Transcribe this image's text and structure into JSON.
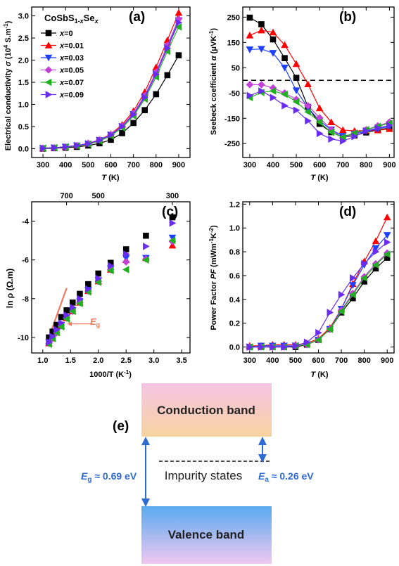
{
  "chart_data": [
    {
      "panel": "(a)",
      "type": "line",
      "title": "CoSbS1-xSex",
      "xlabel": "T (K)",
      "ylabel": "Electrical conductivity σ (10⁴ S.m⁻¹)",
      "xlim": [
        250,
        950
      ],
      "ylim": [
        -0.2,
        3.2
      ],
      "xticks": [
        300,
        400,
        500,
        600,
        700,
        800,
        900
      ],
      "yticks": [
        0.0,
        0.5,
        1.0,
        1.5,
        2.0,
        2.5,
        3.0
      ],
      "ytick_labels": [
        "0.0",
        "0.5",
        "1.0",
        "1.5",
        "2.0",
        "2.5",
        "3.0"
      ],
      "legend_position": "upper-left",
      "x": [
        300,
        350,
        400,
        450,
        500,
        550,
        600,
        650,
        700,
        750,
        800,
        850,
        900
      ],
      "series": [
        {
          "name": "x=0",
          "values": [
            0.0,
            0.01,
            0.02,
            0.04,
            0.07,
            0.12,
            0.2,
            0.35,
            0.58,
            0.87,
            1.23,
            1.66,
            2.11
          ]
        },
        {
          "name": "x=0.01",
          "values": [
            0.01,
            0.02,
            0.04,
            0.07,
            0.12,
            0.2,
            0.33,
            0.54,
            0.85,
            1.28,
            1.84,
            2.45,
            3.07
          ]
        },
        {
          "name": "x=0.03",
          "values": [
            0.01,
            0.02,
            0.04,
            0.07,
            0.11,
            0.19,
            0.31,
            0.5,
            0.78,
            1.18,
            1.7,
            2.3,
            2.9
          ]
        },
        {
          "name": "x=0.05",
          "values": [
            0.01,
            0.02,
            0.04,
            0.07,
            0.12,
            0.2,
            0.32,
            0.51,
            0.8,
            1.2,
            1.73,
            2.33,
            2.93
          ]
        },
        {
          "name": "x=0.07",
          "values": [
            0.01,
            0.02,
            0.04,
            0.06,
            0.1,
            0.17,
            0.29,
            0.47,
            0.74,
            1.12,
            1.62,
            2.2,
            2.75
          ]
        },
        {
          "name": "x=0.09",
          "values": [
            0.01,
            0.02,
            0.04,
            0.07,
            0.11,
            0.19,
            0.31,
            0.5,
            0.77,
            1.16,
            1.68,
            2.27,
            2.85
          ]
        }
      ]
    },
    {
      "panel": "(b)",
      "type": "line",
      "xlabel": "T (K)",
      "ylabel": "Seebeck coefficient α (μVK⁻¹)",
      "xlim": [
        270,
        920
      ],
      "ylim": [
        -305,
        290
      ],
      "xticks": [
        300,
        400,
        500,
        600,
        700,
        800,
        900
      ],
      "yticks": [
        250,
        150,
        50,
        -50,
        -150,
        -250
      ],
      "ytick_labels": [
        "250",
        "150",
        "50",
        "-50",
        "-150",
        "-250"
      ],
      "reference_line": {
        "y": 0,
        "style": "dashed"
      },
      "x": [
        300,
        350,
        400,
        450,
        500,
        550,
        600,
        650,
        700,
        750,
        800,
        850,
        900
      ],
      "series": [
        {
          "name": "x=0",
          "values": [
            248,
            222,
            162,
            88,
            10,
            -105,
            -172,
            -205,
            -225,
            -218,
            -206,
            -196,
            -188
          ]
        },
        {
          "name": "x=0.01",
          "values": [
            178,
            198,
            190,
            140,
            65,
            -15,
            -110,
            -165,
            -196,
            -200,
            -198,
            -197,
            -192
          ]
        },
        {
          "name": "x=0.03",
          "values": [
            122,
            124,
            108,
            50,
            -40,
            -108,
            -160,
            -195,
            -220,
            -212,
            -200,
            -192,
            -182
          ]
        },
        {
          "name": "x=0.05",
          "values": [
            -17,
            -17,
            -30,
            -50,
            -75,
            -100,
            -148,
            -195,
            -228,
            -210,
            -195,
            -180,
            -165
          ]
        },
        {
          "name": "x=0.07",
          "values": [
            -68,
            -48,
            -42,
            -55,
            -85,
            -125,
            -165,
            -205,
            -225,
            -208,
            -195,
            -182,
            -170
          ]
        },
        {
          "name": "x=0.09",
          "values": [
            -60,
            -42,
            -68,
            -100,
            -118,
            -160,
            -210,
            -232,
            -240,
            -222,
            -200,
            -188,
            -178
          ]
        }
      ]
    },
    {
      "panel": "(c)",
      "type": "scatter",
      "xlabel": "1000/T (K⁻¹)",
      "ylabel": "ln ρ (Ω.m)",
      "top_axis_label": "",
      "top_ticks": [
        {
          "label": "700",
          "x": 1.4286
        },
        {
          "label": "500",
          "x": 2.0
        },
        {
          "label": "300",
          "x": 3.333
        }
      ],
      "xlim": [
        0.8,
        3.65
      ],
      "ylim": [
        -10.8,
        -3.0
      ],
      "xticks": [
        1.0,
        1.5,
        2.0,
        2.5,
        3.0,
        3.5
      ],
      "xtick_labels": [
        "1.0",
        "1.5",
        "2.0",
        "2.5",
        "3.0",
        "3.5"
      ],
      "yticks": [
        -4,
        -6,
        -8,
        -10
      ],
      "ytick_labels": [
        "-4",
        "-6",
        "-8",
        "-10"
      ],
      "annotation": "Eg",
      "fit_line": {
        "x": [
          1.06,
          1.43
        ],
        "y": [
          -10.4,
          -7.45
        ]
      },
      "x": [
        1.111,
        1.176,
        1.25,
        1.333,
        1.429,
        1.538,
        1.667,
        1.818,
        2.0,
        2.222,
        2.5,
        2.857,
        3.333
      ],
      "series": [
        {
          "name": "x=0",
          "values": [
            -10.0,
            -9.7,
            -9.35,
            -8.95,
            -8.6,
            -8.2,
            -7.75,
            -7.25,
            -6.7,
            -6.15,
            -5.45,
            -4.75,
            -3.8
          ]
        },
        {
          "name": "x=0.01",
          "values": [
            -10.3,
            -10.05,
            -9.75,
            -9.4,
            -9.0,
            -8.65,
            -8.2,
            -7.6,
            -7.1,
            -6.5,
            -6.0,
            -5.9,
            -5.25
          ]
        },
        {
          "name": "x=0.03",
          "values": [
            -10.25,
            -10.0,
            -9.7,
            -9.35,
            -8.95,
            -8.6,
            -8.15,
            -7.55,
            -7.05,
            -6.45,
            -5.9,
            -5.9,
            -4.85
          ]
        },
        {
          "name": "x=0.05",
          "values": [
            -10.3,
            -10.05,
            -9.75,
            -9.4,
            -9.0,
            -8.65,
            -8.2,
            -7.6,
            -7.1,
            -6.5,
            -6.1,
            -5.95,
            -5.05
          ]
        },
        {
          "name": "x=0.07",
          "values": [
            -10.35,
            -10.05,
            -9.75,
            -9.45,
            -9.05,
            -8.65,
            -8.25,
            -7.65,
            -7.15,
            -6.55,
            -6.5,
            -6.0,
            -5.0
          ]
        },
        {
          "name": "x=0.09",
          "values": [
            -10.25,
            -9.95,
            -9.6,
            -9.25,
            -8.85,
            -8.45,
            -8.0,
            -7.5,
            -6.95,
            -6.3,
            -5.7,
            -5.3,
            -4.1
          ]
        }
      ]
    },
    {
      "panel": "(d)",
      "type": "line",
      "xlabel": "T (K)",
      "ylabel": "Power Factor PF (mWm⁻¹K⁻²)",
      "xlim": [
        270,
        930
      ],
      "ylim": [
        -0.05,
        1.22
      ],
      "xticks": [
        300,
        400,
        500,
        600,
        700,
        800,
        900
      ],
      "yticks": [
        0.0,
        0.2,
        0.4,
        0.6,
        0.8,
        1.0,
        1.2
      ],
      "ytick_labels": [
        "0.0",
        "0.2",
        "0.4",
        "0.6",
        "0.8",
        "1.0",
        "1.2"
      ],
      "x": [
        300,
        350,
        400,
        450,
        500,
        550,
        600,
        650,
        700,
        750,
        800,
        850,
        900
      ],
      "series": [
        {
          "name": "x=0",
          "values": [
            0.0,
            0.0,
            0.0,
            0.0,
            0.0,
            0.02,
            0.06,
            0.15,
            0.29,
            0.41,
            0.55,
            0.66,
            0.75
          ]
        },
        {
          "name": "x=0.01",
          "values": [
            0.01,
            0.01,
            0.02,
            0.02,
            0.02,
            0.03,
            0.07,
            0.16,
            0.32,
            0.53,
            0.72,
            0.89,
            1.09
          ]
        },
        {
          "name": "x=0.03",
          "values": [
            0.0,
            0.01,
            0.01,
            0.01,
            0.01,
            0.02,
            0.06,
            0.15,
            0.32,
            0.52,
            0.69,
            0.83,
            0.94
          ]
        },
        {
          "name": "x=0.05",
          "values": [
            0.0,
            0.0,
            0.0,
            0.0,
            0.01,
            0.02,
            0.06,
            0.15,
            0.31,
            0.45,
            0.59,
            0.7,
            0.79
          ]
        },
        {
          "name": "x=0.07",
          "values": [
            0.0,
            0.0,
            0.0,
            0.0,
            0.01,
            0.02,
            0.06,
            0.15,
            0.3,
            0.44,
            0.58,
            0.69,
            0.78
          ]
        },
        {
          "name": "x=0.09",
          "values": [
            0.0,
            0.0,
            0.0,
            0.0,
            0.01,
            0.04,
            0.12,
            0.29,
            0.44,
            0.58,
            0.7,
            0.8,
            0.88
          ]
        }
      ]
    }
  ],
  "legend": {
    "title_main": "CoSbS",
    "title_sub1": "1-",
    "title_sub1_var": "x",
    "title_mid": "Se",
    "title_sub2": "x",
    "entries": [
      {
        "var": "x",
        "label": "=0"
      },
      {
        "var": "x",
        "label": "=0.01"
      },
      {
        "var": "x",
        "label": "=0.03"
      },
      {
        "var": "x",
        "label": "=0.05"
      },
      {
        "var": "x",
        "label": "=0.07"
      },
      {
        "var": "x",
        "label": "=0.09"
      }
    ]
  },
  "styles": {
    "series_colors": [
      "#000000",
      "#ff0000",
      "#1f3fff",
      "#c040d8",
      "#20b020",
      "#6a2cf0"
    ],
    "markers": [
      "square",
      "triangle-up",
      "triangle-down",
      "diamond",
      "triangle-left",
      "triangle-right"
    ],
    "eg_color": "#f07a60",
    "label_blue": "#2e6bd0",
    "conduction_gradient": [
      "#f6c4e4",
      "#f7d3a0"
    ],
    "valence_gradient": [
      "#5aaaf0",
      "#f0c8f0"
    ]
  },
  "panels": {
    "a": {
      "label": "(a)",
      "ylabel_main": "Electrical conductivity ",
      "ylabel_sym": "σ",
      "ylabel_unit_pre": " (10",
      "ylabel_unit_exp": "4",
      "ylabel_unit_mid": " S.m",
      "ylabel_unit_exp2": "-1",
      "ylabel_unit_end": ")",
      "xlabel_var": "T",
      "xlabel_unit": " (K)"
    },
    "b": {
      "label": "(b)",
      "ylabel_main": "Seebeck coefficient ",
      "ylabel_sym": "α",
      "ylabel_unit_pre": " (μVK",
      "ylabel_unit_exp": "-1",
      "ylabel_unit_end": ")",
      "xlabel_var": "T",
      "xlabel_unit": " (K)"
    },
    "c": {
      "label": "(c)",
      "ylabel": "ln ρ (Ω.m)",
      "xlabel_pre": "1000/T (K",
      "xlabel_exp": "-1",
      "xlabel_end": ")",
      "eg_var": "E",
      "eg_sub": "g"
    },
    "d": {
      "label": "(d)",
      "ylabel_main": "Power Factor ",
      "ylabel_sym": "PF",
      "ylabel_unit_pre": " (mWm",
      "ylabel_unit_exp": "-1",
      "ylabel_unit_mid": "K",
      "ylabel_unit_exp2": "-2",
      "ylabel_unit_end": ")",
      "xlabel_var": "T",
      "xlabel_unit": " (K)"
    },
    "e": {
      "label": "(e)",
      "conduction_band": "Conduction band",
      "valence_band": "Valence band",
      "impurity_states": "Impurity states",
      "eg_var": "E",
      "eg_sub": "g",
      "eg_value": " ≈ 0.69 eV",
      "ea_var": "E",
      "ea_sub": "a",
      "ea_value": " ≈ 0.26 eV"
    }
  }
}
